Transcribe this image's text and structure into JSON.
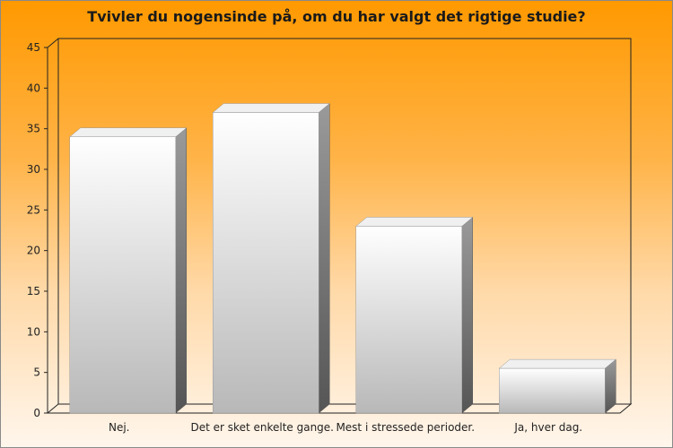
{
  "chart_data": {
    "type": "bar",
    "title": "Tvivler du nogensinde på, om du har valgt det rigtige studie?",
    "categories": [
      "Nej.",
      "Det er sket enkelte gange.",
      "Mest i stressede perioder.",
      "Ja, hver dag."
    ],
    "values": [
      34,
      37,
      23,
      5.5
    ],
    "y_ticks": [
      0,
      5,
      10,
      15,
      20,
      25,
      30,
      35,
      40,
      45
    ],
    "ylim": [
      0,
      45
    ],
    "grid": false,
    "legend": false,
    "colors": {
      "bar_light": "#ffffff",
      "bar_dark": "#b8b8b8",
      "bar_side": "#6e6e6e",
      "bar_top": "#f0f0f0",
      "axis": "#222222"
    }
  }
}
